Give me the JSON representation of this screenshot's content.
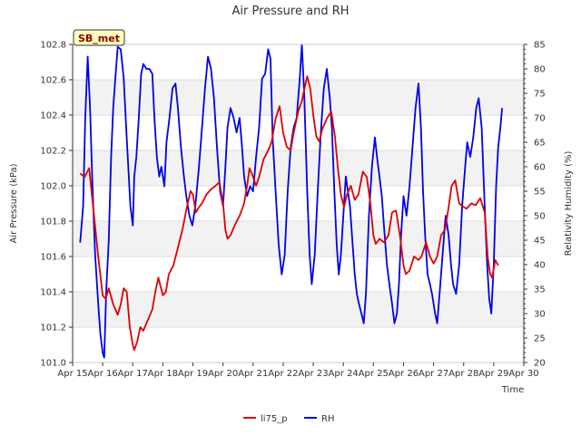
{
  "chart_data": {
    "type": "line",
    "title": "Air Pressure and RH",
    "badge": "SB_met",
    "xlabel": "Time",
    "ylabel": "Air Pressure (kPa)",
    "y2label": "Relativity Humidity (%)",
    "x_ticks": [
      "Apr 15",
      "Apr 16",
      "Apr 17",
      "Apr 18",
      "Apr 19",
      "Apr 20",
      "Apr 21",
      "Apr 22",
      "Apr 23",
      "Apr 24",
      "Apr 25",
      "Apr 26",
      "Apr 27",
      "Apr 28",
      "Apr 29",
      "Apr 30"
    ],
    "xlim": [
      15,
      30
    ],
    "ylim": [
      101.0,
      102.8
    ],
    "y_ticks": [
      101.0,
      101.2,
      101.4,
      101.6,
      101.8,
      102.0,
      102.2,
      102.4,
      102.6,
      102.8
    ],
    "y2lim": [
      20,
      85
    ],
    "y2_ticks": [
      20,
      25,
      30,
      35,
      40,
      45,
      50,
      55,
      60,
      65,
      70,
      75,
      80,
      85
    ],
    "grid": true,
    "legend_position": "bottom",
    "series": [
      {
        "name": "li75_p",
        "axis": "left",
        "color": "#e00000",
        "points": [
          [
            15.25,
            102.07
          ],
          [
            15.4,
            102.05
          ],
          [
            15.55,
            102.1
          ],
          [
            15.7,
            101.85
          ],
          [
            15.85,
            101.6
          ],
          [
            16.0,
            101.38
          ],
          [
            16.1,
            101.36
          ],
          [
            16.2,
            101.42
          ],
          [
            16.35,
            101.33
          ],
          [
            16.5,
            101.27
          ],
          [
            16.6,
            101.33
          ],
          [
            16.7,
            101.42
          ],
          [
            16.8,
            101.4
          ],
          [
            16.9,
            101.2
          ],
          [
            17.0,
            101.1
          ],
          [
            17.05,
            101.07
          ],
          [
            17.15,
            101.12
          ],
          [
            17.25,
            101.2
          ],
          [
            17.35,
            101.18
          ],
          [
            17.45,
            101.22
          ],
          [
            17.55,
            101.26
          ],
          [
            17.65,
            101.3
          ],
          [
            17.75,
            101.4
          ],
          [
            17.85,
            101.48
          ],
          [
            18.0,
            101.38
          ],
          [
            18.1,
            101.4
          ],
          [
            18.2,
            101.5
          ],
          [
            18.35,
            101.55
          ],
          [
            18.5,
            101.65
          ],
          [
            18.65,
            101.75
          ],
          [
            18.8,
            101.88
          ],
          [
            18.92,
            101.97
          ],
          [
            19.0,
            101.95
          ],
          [
            19.1,
            101.85
          ],
          [
            19.2,
            101.88
          ],
          [
            19.3,
            101.9
          ],
          [
            19.45,
            101.95
          ],
          [
            19.6,
            101.98
          ],
          [
            19.75,
            102.0
          ],
          [
            19.88,
            102.02
          ],
          [
            20.0,
            101.9
          ],
          [
            20.08,
            101.75
          ],
          [
            20.15,
            101.7
          ],
          [
            20.25,
            101.72
          ],
          [
            20.4,
            101.78
          ],
          [
            20.55,
            101.83
          ],
          [
            20.7,
            101.9
          ],
          [
            20.8,
            102.0
          ],
          [
            20.88,
            102.1
          ],
          [
            21.0,
            102.05
          ],
          [
            21.1,
            102.0
          ],
          [
            21.2,
            102.05
          ],
          [
            21.35,
            102.15
          ],
          [
            21.5,
            102.2
          ],
          [
            21.62,
            102.25
          ],
          [
            21.75,
            102.38
          ],
          [
            21.88,
            102.45
          ],
          [
            22.0,
            102.3
          ],
          [
            22.12,
            102.22
          ],
          [
            22.25,
            102.2
          ],
          [
            22.35,
            102.3
          ],
          [
            22.5,
            102.42
          ],
          [
            22.62,
            102.48
          ],
          [
            22.72,
            102.56
          ],
          [
            22.8,
            102.62
          ],
          [
            22.9,
            102.55
          ],
          [
            23.0,
            102.4
          ],
          [
            23.1,
            102.28
          ],
          [
            23.2,
            102.25
          ],
          [
            23.3,
            102.32
          ],
          [
            23.45,
            102.38
          ],
          [
            23.6,
            102.42
          ],
          [
            23.72,
            102.28
          ],
          [
            23.82,
            102.1
          ],
          [
            23.92,
            101.95
          ],
          [
            24.02,
            101.88
          ],
          [
            24.12,
            101.95
          ],
          [
            24.25,
            102.0
          ],
          [
            24.38,
            101.92
          ],
          [
            24.5,
            101.95
          ],
          [
            24.65,
            102.08
          ],
          [
            24.78,
            102.05
          ],
          [
            24.9,
            101.9
          ],
          [
            25.0,
            101.72
          ],
          [
            25.08,
            101.67
          ],
          [
            25.2,
            101.7
          ],
          [
            25.35,
            101.68
          ],
          [
            25.5,
            101.72
          ],
          [
            25.62,
            101.85
          ],
          [
            25.75,
            101.86
          ],
          [
            25.88,
            101.72
          ],
          [
            26.0,
            101.55
          ],
          [
            26.08,
            101.5
          ],
          [
            26.2,
            101.52
          ],
          [
            26.35,
            101.6
          ],
          [
            26.5,
            101.58
          ],
          [
            26.6,
            101.6
          ],
          [
            26.75,
            101.68
          ],
          [
            26.88,
            101.6
          ],
          [
            27.0,
            101.56
          ],
          [
            27.12,
            101.6
          ],
          [
            27.25,
            101.72
          ],
          [
            27.38,
            101.75
          ],
          [
            27.5,
            101.88
          ],
          [
            27.6,
            102.0
          ],
          [
            27.72,
            102.03
          ],
          [
            27.85,
            101.9
          ],
          [
            28.0,
            101.88
          ],
          [
            28.1,
            101.87
          ],
          [
            28.25,
            101.9
          ],
          [
            28.4,
            101.89
          ],
          [
            28.55,
            101.93
          ],
          [
            28.7,
            101.85
          ],
          [
            28.8,
            101.6
          ],
          [
            28.88,
            101.5
          ],
          [
            28.95,
            101.48
          ],
          [
            29.05,
            101.58
          ],
          [
            29.15,
            101.55
          ]
        ]
      },
      {
        "name": "RH",
        "axis": "right",
        "color": "#0000ee",
        "points": [
          [
            15.25,
            44.5
          ],
          [
            15.35,
            52
          ],
          [
            15.42,
            70
          ],
          [
            15.5,
            82.5
          ],
          [
            15.58,
            72
          ],
          [
            15.65,
            58
          ],
          [
            15.75,
            42
          ],
          [
            15.85,
            32
          ],
          [
            15.92,
            26
          ],
          [
            16.0,
            22
          ],
          [
            16.05,
            21
          ],
          [
            16.12,
            35
          ],
          [
            16.2,
            45
          ],
          [
            16.28,
            62
          ],
          [
            16.35,
            72
          ],
          [
            16.42,
            78
          ],
          [
            16.5,
            84.5
          ],
          [
            16.6,
            84
          ],
          [
            16.7,
            78
          ],
          [
            16.78,
            68
          ],
          [
            16.85,
            60
          ],
          [
            16.92,
            52
          ],
          [
            17.0,
            48
          ],
          [
            17.05,
            58
          ],
          [
            17.12,
            62
          ],
          [
            17.2,
            70
          ],
          [
            17.28,
            79
          ],
          [
            17.35,
            81
          ],
          [
            17.45,
            80
          ],
          [
            17.55,
            80
          ],
          [
            17.65,
            79
          ],
          [
            17.72,
            70
          ],
          [
            17.8,
            62
          ],
          [
            17.88,
            58
          ],
          [
            17.95,
            60
          ],
          [
            18.05,
            56
          ],
          [
            18.12,
            65
          ],
          [
            18.22,
            70
          ],
          [
            18.32,
            76
          ],
          [
            18.42,
            77
          ],
          [
            18.5,
            72
          ],
          [
            18.6,
            64
          ],
          [
            18.7,
            58
          ],
          [
            18.78,
            54
          ],
          [
            18.88,
            50
          ],
          [
            18.98,
            48
          ],
          [
            19.08,
            52
          ],
          [
            19.2,
            60
          ],
          [
            19.3,
            68
          ],
          [
            19.4,
            76
          ],
          [
            19.5,
            82.5
          ],
          [
            19.6,
            80
          ],
          [
            19.7,
            74
          ],
          [
            19.8,
            64
          ],
          [
            19.9,
            55
          ],
          [
            20.0,
            52
          ],
          [
            20.08,
            60
          ],
          [
            20.15,
            68
          ],
          [
            20.25,
            72
          ],
          [
            20.35,
            70
          ],
          [
            20.45,
            67
          ],
          [
            20.55,
            70
          ],
          [
            20.62,
            65
          ],
          [
            20.7,
            58
          ],
          [
            20.8,
            54
          ],
          [
            20.9,
            56
          ],
          [
            21.0,
            55
          ],
          [
            21.1,
            62
          ],
          [
            21.2,
            68
          ],
          [
            21.3,
            78
          ],
          [
            21.4,
            79
          ],
          [
            21.5,
            84
          ],
          [
            21.58,
            82
          ],
          [
            21.65,
            66
          ],
          [
            21.75,
            55
          ],
          [
            21.85,
            44
          ],
          [
            21.95,
            38
          ],
          [
            22.05,
            42
          ],
          [
            22.15,
            55
          ],
          [
            22.25,
            64
          ],
          [
            22.35,
            68
          ],
          [
            22.45,
            70
          ],
          [
            22.55,
            78
          ],
          [
            22.62,
            85
          ],
          [
            22.7,
            75
          ],
          [
            22.8,
            55
          ],
          [
            22.88,
            42
          ],
          [
            22.95,
            36
          ],
          [
            23.05,
            42
          ],
          [
            23.15,
            55
          ],
          [
            23.25,
            67
          ],
          [
            23.35,
            76
          ],
          [
            23.45,
            80
          ],
          [
            23.55,
            74
          ],
          [
            23.62,
            68
          ],
          [
            23.7,
            55
          ],
          [
            23.78,
            44
          ],
          [
            23.85,
            38
          ],
          [
            23.92,
            42
          ],
          [
            24.0,
            50
          ],
          [
            24.08,
            58
          ],
          [
            24.15,
            55
          ],
          [
            24.22,
            52
          ],
          [
            24.3,
            45
          ],
          [
            24.38,
            38
          ],
          [
            24.45,
            34
          ],
          [
            24.52,
            32
          ],
          [
            24.6,
            30
          ],
          [
            24.68,
            28
          ],
          [
            24.75,
            34
          ],
          [
            24.85,
            50
          ],
          [
            24.95,
            60
          ],
          [
            25.05,
            66
          ],
          [
            25.12,
            62
          ],
          [
            25.2,
            58
          ],
          [
            25.28,
            54
          ],
          [
            25.35,
            48
          ],
          [
            25.45,
            40
          ],
          [
            25.55,
            35
          ],
          [
            25.62,
            32
          ],
          [
            25.7,
            28
          ],
          [
            25.78,
            30
          ],
          [
            25.85,
            36
          ],
          [
            25.92,
            46
          ],
          [
            26.0,
            54
          ],
          [
            26.1,
            50
          ],
          [
            26.2,
            56
          ],
          [
            26.3,
            64
          ],
          [
            26.4,
            72
          ],
          [
            26.5,
            77
          ],
          [
            26.58,
            68
          ],
          [
            26.65,
            55
          ],
          [
            26.72,
            46
          ],
          [
            26.8,
            38
          ],
          [
            26.88,
            36
          ],
          [
            26.95,
            34
          ],
          [
            27.05,
            30
          ],
          [
            27.12,
            28
          ],
          [
            27.2,
            34
          ],
          [
            27.3,
            42
          ],
          [
            27.4,
            50
          ],
          [
            27.5,
            46
          ],
          [
            27.58,
            40
          ],
          [
            27.65,
            36
          ],
          [
            27.75,
            34
          ],
          [
            27.85,
            40
          ],
          [
            27.95,
            52
          ],
          [
            28.05,
            60
          ],
          [
            28.12,
            65
          ],
          [
            28.22,
            62
          ],
          [
            28.32,
            66
          ],
          [
            28.42,
            72
          ],
          [
            28.5,
            74
          ],
          [
            28.6,
            68
          ],
          [
            28.7,
            52
          ],
          [
            28.78,
            40
          ],
          [
            28.85,
            33
          ],
          [
            28.92,
            30
          ],
          [
            29.0,
            40
          ],
          [
            29.08,
            56
          ],
          [
            29.15,
            64
          ],
          [
            29.22,
            68
          ],
          [
            29.28,
            72
          ]
        ]
      }
    ]
  }
}
